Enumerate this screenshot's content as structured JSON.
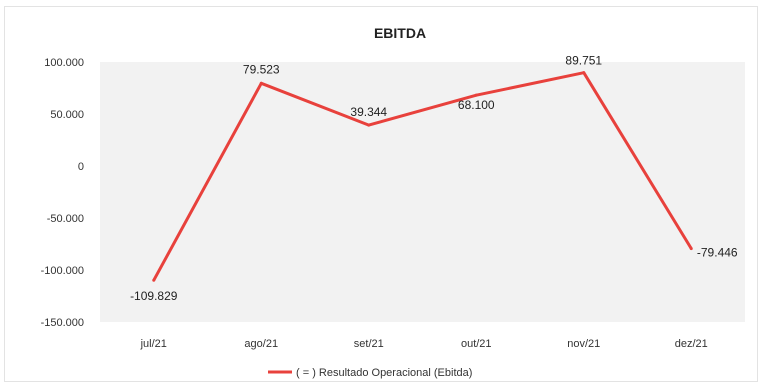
{
  "chart_data": {
    "type": "line",
    "title": "EBITDA",
    "categories": [
      "jul/21",
      "ago/21",
      "set/21",
      "out/21",
      "nov/21",
      "dez/21"
    ],
    "series": [
      {
        "name": "( = ) Resultado Operacional (Ebitda)",
        "values": [
          -109829,
          79523,
          39344,
          68100,
          89751,
          -79446
        ],
        "labels": [
          "-109.829",
          "79.523",
          "39.344",
          "68.100",
          "89.751",
          "-79.446"
        ],
        "color": "#e8413c"
      }
    ],
    "ylim": [
      -150000,
      100000
    ],
    "yticks": [
      100000,
      50000,
      0,
      -50000,
      -100000,
      -150000
    ],
    "ytick_labels": [
      "100.000",
      "50.000",
      "0",
      "-50.000",
      "-100.000",
      "-150.000"
    ],
    "xlabel": "",
    "ylabel": "",
    "grid": false,
    "legend_position": "bottom",
    "plot_background": "#f2f2f2"
  }
}
